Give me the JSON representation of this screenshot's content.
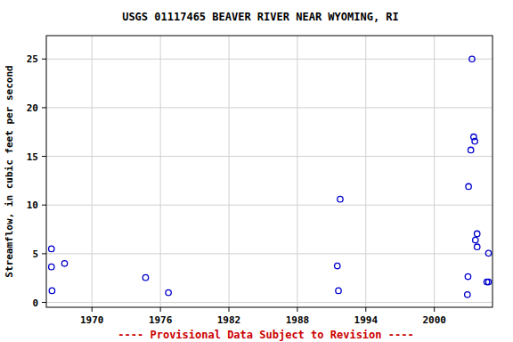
{
  "chart_data": {
    "type": "scatter",
    "title": "USGS 01117465 BEAVER RIVER NEAR WYOMING, RI",
    "y_label": "Streamflow, in cubic feet per second",
    "annotations": [
      "---- Provisional Data Subject to Revision ----"
    ],
    "series": [
      {
        "name": "Streamflow",
        "color": "#0000cc",
        "marker": "open-circle",
        "x": [
          1966.45,
          1966.45,
          1966.5,
          1967.6,
          1974.7,
          1976.7,
          1991.5,
          1991.6,
          1991.75,
          2002.9,
          2002.95,
          2003.0,
          2003.2,
          2003.3,
          2003.45,
          2003.55,
          2003.6,
          2003.75,
          2003.75,
          2004.6,
          2004.75,
          2004.75
        ],
        "values": [
          5.5,
          3.65,
          1.2,
          4.0,
          2.55,
          1.0,
          3.75,
          1.2,
          10.6,
          0.8,
          2.65,
          11.9,
          15.65,
          25.0,
          17.0,
          16.55,
          6.4,
          7.05,
          5.7,
          2.1,
          2.1,
          5.05
        ]
      }
    ],
    "xlim": [
      1966.0,
      2005.1
    ],
    "xticks": [
      1970,
      1976,
      1982,
      1988,
      1994,
      2000
    ],
    "ylim": [
      -0.5,
      27.4
    ],
    "yticks": [
      0,
      5,
      10,
      15,
      20,
      25
    ],
    "grid": true
  }
}
